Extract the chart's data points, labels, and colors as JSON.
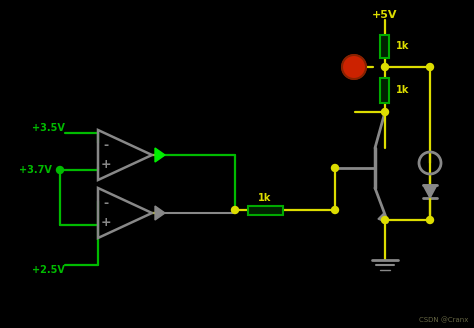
{
  "bg_color": "#000000",
  "wire_yellow": "#DDDD00",
  "wire_green": "#00BB00",
  "wire_gray": "#888888",
  "resistor_color": "#00AA00",
  "resistor_fill": "#002200",
  "label_color": "#DDDD00",
  "label_green": "#00BB00",
  "red_led": "#CC2200",
  "gray": "#777777",
  "diode_green": "#00EE00",
  "csdn": "CSDN @Cranx",
  "v5": "+5V",
  "v35": "+3.5V",
  "v37": "+3.7V",
  "v25": "+2.5V"
}
